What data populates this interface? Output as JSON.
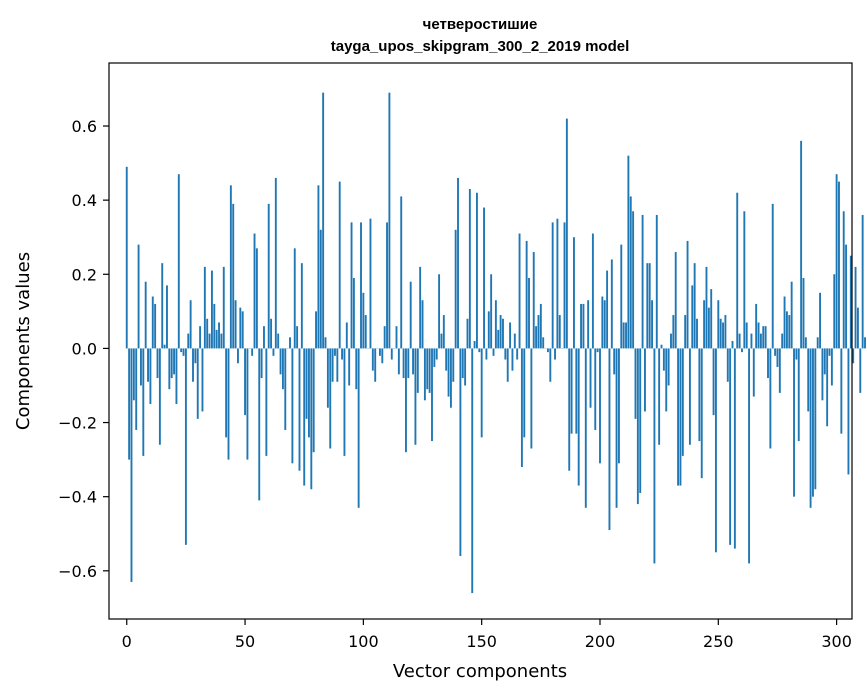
{
  "chart_data": {
    "type": "bar",
    "title": "четверостишие",
    "subtitle": "tayga_upos_skipgram_300_2_2019 model",
    "xlabel": "Vector components",
    "ylabel": "Components values",
    "xlim": [
      -7.5,
      306.5
    ],
    "ylim": [
      -0.73,
      0.77
    ],
    "xticks": [
      0,
      50,
      100,
      150,
      200,
      250,
      300
    ],
    "yticks": [
      -0.6,
      -0.4,
      -0.2,
      0.0,
      0.2,
      0.4,
      0.6
    ],
    "ytick_labels": [
      "−0.6",
      "−0.4",
      "−0.2",
      "0.0",
      "0.2",
      "0.4",
      "0.6"
    ],
    "grid": false,
    "color": "#1f77b4",
    "values": [
      0.49,
      -0.3,
      -0.63,
      -0.14,
      -0.22,
      0.28,
      -0.1,
      -0.29,
      0.18,
      -0.09,
      -0.15,
      0.14,
      0.12,
      -0.08,
      -0.26,
      0.23,
      0.01,
      0.17,
      -0.11,
      -0.08,
      -0.07,
      -0.15,
      0.47,
      -0.01,
      -0.02,
      -0.53,
      0.04,
      0.13,
      -0.09,
      -0.04,
      -0.19,
      0.06,
      -0.17,
      0.22,
      0.08,
      0.04,
      0.21,
      0.12,
      0.05,
      0.07,
      0.04,
      0.22,
      -0.24,
      -0.3,
      0.44,
      0.39,
      0.13,
      -0.04,
      0.11,
      0.1,
      -0.18,
      -0.3,
      0.0,
      -0.02,
      0.31,
      0.27,
      -0.41,
      -0.08,
      0.06,
      -0.29,
      0.39,
      0.08,
      -0.02,
      0.46,
      0.04,
      -0.07,
      -0.11,
      -0.22,
      0.0,
      0.03,
      -0.31,
      0.27,
      0.06,
      -0.33,
      0.23,
      -0.37,
      -0.19,
      -0.24,
      -0.38,
      -0.28,
      0.1,
      0.44,
      0.32,
      0.69,
      0.03,
      -0.16,
      -0.27,
      -0.09,
      -0.02,
      -0.09,
      0.45,
      -0.03,
      -0.29,
      0.07,
      -0.1,
      0.34,
      0.19,
      -0.11,
      -0.43,
      0.34,
      0.15,
      0.09,
      0.0,
      0.35,
      -0.06,
      -0.09,
      0.0,
      -0.02,
      -0.04,
      0.06,
      0.34,
      0.69,
      -0.03,
      0.0,
      0.06,
      -0.07,
      0.41,
      -0.08,
      -0.28,
      -0.08,
      0.18,
      -0.07,
      -0.26,
      -0.12,
      0.22,
      0.13,
      -0.14,
      -0.11,
      -0.12,
      -0.25,
      -0.05,
      -0.03,
      0.2,
      0.04,
      0.09,
      -0.06,
      -0.13,
      -0.16,
      -0.09,
      0.32,
      0.46,
      -0.56,
      -0.08,
      -0.1,
      0.08,
      0.43,
      -0.66,
      0.02,
      0.42,
      -0.01,
      -0.24,
      0.38,
      -0.03,
      0.1,
      0.2,
      -0.02,
      0.13,
      0.05,
      0.09,
      0.08,
      -0.03,
      -0.09,
      0.07,
      -0.06,
      0.04,
      -0.03,
      0.31,
      -0.32,
      -0.24,
      0.29,
      0.19,
      -0.27,
      0.26,
      0.06,
      0.09,
      0.12,
      0.03,
      0.0,
      -0.01,
      -0.09,
      0.34,
      -0.03,
      0.35,
      0.09,
      0.0,
      0.34,
      0.62,
      -0.33,
      -0.23,
      0.3,
      -0.23,
      -0.37,
      0.12,
      0.12,
      -0.43,
      0.13,
      -0.16,
      0.31,
      -0.22,
      -0.01,
      -0.31,
      0.14,
      0.13,
      0.21,
      -0.49,
      0.24,
      -0.07,
      -0.43,
      -0.31,
      0.28,
      0.07,
      0.07,
      0.52,
      0.41,
      0.37,
      -0.19,
      -0.42,
      -0.39,
      0.36,
      -0.17,
      0.23,
      0.23,
      0.13,
      -0.58,
      0.36,
      -0.26,
      0.01,
      -0.06,
      -0.17,
      -0.1,
      0.04,
      0.09,
      0.26,
      -0.37,
      -0.37,
      -0.29,
      0.09,
      0.29,
      -0.26,
      0.17,
      0.23,
      0.08,
      -0.25,
      -0.35,
      0.13,
      0.22,
      0.11,
      0.16,
      -0.18,
      -0.55,
      0.13,
      0.08,
      0.07,
      0.09,
      -0.09,
      -0.53,
      0.02,
      -0.54,
      0.42,
      0.04,
      -0.01,
      0.37,
      0.07,
      -0.58,
      0.04,
      -0.13,
      0.12,
      0.07,
      0.04,
      0.06,
      0.06,
      -0.08,
      -0.27,
      0.39,
      -0.02,
      -0.05,
      -0.12,
      0.04,
      0.14,
      0.1,
      0.09,
      0.18,
      -0.4,
      -0.03,
      -0.25,
      0.56,
      0.19,
      0.03,
      -0.17,
      -0.43,
      -0.4,
      -0.38,
      0.03,
      0.15,
      -0.14,
      -0.07,
      -0.21,
      -0.02,
      -0.1,
      0.2,
      0.47,
      0.45,
      -0.23,
      0.37,
      0.28,
      -0.34,
      0.25,
      -0.04,
      0.22,
      0.11,
      -0.12,
      0.36,
      0.03
    ]
  }
}
